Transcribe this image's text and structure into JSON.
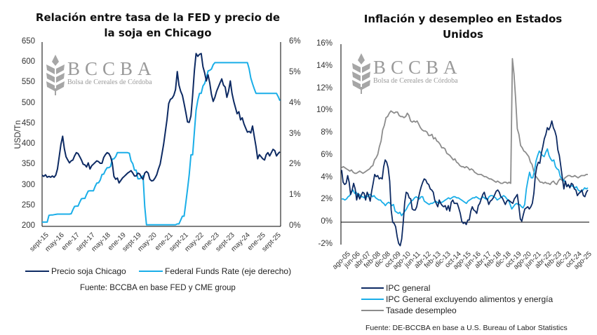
{
  "chart_data": [
    {
      "type": "line",
      "title": "Relación entre tasa de la FED y precio de la soja en Chicago",
      "title_lines": [
        "Relación entre tasa de la FED y precio de",
        "la soja en Chicago"
      ],
      "ylabel": "USD/Tn",
      "ylim": [
        200,
        650
      ],
      "y2lim": [
        0,
        6
      ],
      "yticks": [
        "650",
        "600",
        "550",
        "500",
        "450",
        "400",
        "350",
        "300",
        "250",
        "200"
      ],
      "y2ticks": [
        "6%",
        "5%",
        "4%",
        "3%",
        "2%",
        "1%",
        "0%"
      ],
      "xticks": [
        "sept-15",
        "may-16",
        "ene-17",
        "sept-17",
        "may-18",
        "ene-19",
        "sept-19",
        "may-20",
        "ene-21",
        "sept-21",
        "may-22",
        "ene-23",
        "sept-23",
        "may-24",
        "ene-25",
        "sept-25"
      ],
      "x_range": [
        "sept-15",
        "oct-25"
      ],
      "legend": "bottom",
      "series": [
        {
          "name": "Precio soja Chicago",
          "axis": "left",
          "color": "#0d2a63",
          "values": [
            325,
            322,
            326,
            320,
            322,
            320,
            323,
            320,
            325,
            340,
            370,
            400,
            420,
            390,
            370,
            362,
            355,
            360,
            362,
            372,
            380,
            378,
            370,
            362,
            352,
            350,
            345,
            355,
            340,
            348,
            352,
            356,
            360,
            358,
            354,
            354,
            368,
            375,
            380,
            378,
            370,
            355,
            322,
            315,
            318,
            306,
            312,
            318,
            322,
            326,
            330,
            333,
            336,
            330,
            323,
            323,
            330,
            328,
            320,
            315,
            330,
            334,
            330,
            315,
            311,
            312,
            318,
            326,
            340,
            352,
            375,
            400,
            430,
            460,
            500,
            510,
            513,
            520,
            534,
            578,
            545,
            530,
            520,
            500,
            478,
            455,
            454,
            470,
            520,
            580,
            622,
            615,
            620,
            622,
            590,
            575,
            555,
            570,
            550,
            522,
            505,
            515,
            530,
            540,
            550,
            560,
            545,
            540,
            515,
            530,
            555,
            525,
            505,
            490,
            475,
            480,
            460,
            465,
            450,
            440,
            430,
            432,
            428,
            445,
            420,
            395,
            365,
            375,
            370,
            365,
            362,
            375,
            380,
            372,
            380,
            388,
            385,
            372,
            378,
            382
          ]
        },
        {
          "name": "Federal Funds Rate (eje derecho)",
          "axis": "right",
          "color": "#1aaee8",
          "values": [
            0.14,
            0.14,
            0.14,
            0.14,
            0.36,
            0.37,
            0.37,
            0.38,
            0.39,
            0.4,
            0.4,
            0.4,
            0.4,
            0.4,
            0.4,
            0.4,
            0.4,
            0.41,
            0.54,
            0.65,
            0.66,
            0.66,
            0.79,
            0.9,
            0.91,
            0.91,
            1.04,
            1.15,
            1.16,
            1.16,
            1.16,
            1.3,
            1.41,
            1.42,
            1.51,
            1.69,
            1.7,
            1.82,
            1.91,
            1.91,
            1.95,
            2.19,
            2.2,
            2.27,
            2.4,
            2.4,
            2.4,
            2.4,
            2.4,
            2.4,
            2.4,
            2.38,
            2.13,
            2.04,
            1.83,
            1.83,
            1.55,
            1.55,
            1.58,
            1.65,
            0.65,
            0.05,
            0.05,
            0.05,
            0.05,
            0.05,
            0.05,
            0.05,
            0.05,
            0.05,
            0.05,
            0.05,
            0.05,
            0.05,
            0.05,
            0.05,
            0.05,
            0.05,
            0.05,
            0.08,
            0.08,
            0.2,
            0.33,
            0.33,
            0.77,
            1.21,
            1.68,
            2.33,
            2.33,
            3.08,
            3.78,
            4.1,
            4.33,
            4.33,
            4.57,
            4.65,
            4.83,
            5.06,
            5.08,
            5.12,
            5.26,
            5.33,
            5.33,
            5.33,
            5.33,
            5.33,
            5.33,
            5.33,
            5.33,
            5.33,
            5.33,
            5.33,
            5.33,
            5.33,
            5.33,
            5.33,
            5.33,
            5.33,
            5.33,
            5.33,
            5.33,
            5.13,
            4.83,
            4.64,
            4.48,
            4.33,
            4.33,
            4.33,
            4.33,
            4.33,
            4.33,
            4.33,
            4.33,
            4.33,
            4.33,
            4.33,
            4.33,
            4.33,
            4.22,
            4.09
          ]
        }
      ],
      "source": "Fuente: BCCBA en base FED y CME group"
    },
    {
      "type": "line",
      "title": "Inflación y desempleo en Estados Unidos",
      "title_lines": [
        "Inflación y desempleo en Estados",
        "Unidos"
      ],
      "ylabel": "",
      "ylim": [
        -2,
        16
      ],
      "yticks": [
        "16%",
        "14%",
        "12%",
        "10%",
        "8%",
        "6%",
        "4%",
        "2%",
        "0%",
        "-2%"
      ],
      "xticks": [
        "ago-05",
        "jun-06",
        "abr-07",
        "feb-08",
        "dic-08",
        "oct-09",
        "ago-10",
        "jun-11",
        "abr-12",
        "feb-13",
        "dic-13",
        "oct-14",
        "ago-15",
        "jun-16",
        "abr-17",
        "feb-18",
        "dic-18",
        "oct-19",
        "ago-20",
        "jun-21",
        "abr-22",
        "feb-23",
        "dic-23",
        "oct-24",
        "ago-25"
      ],
      "x_range": [
        "ago-05",
        "ago-25"
      ],
      "legend": "bottom",
      "series": [
        {
          "name": "IPC general",
          "color": "#0d2a63",
          "values": [
            4.7,
            3.6,
            3.4,
            3.5,
            4.2,
            3.6,
            2.5,
            2.9,
            3.5,
            3.0,
            2.0,
            2.6,
            2.1,
            2.4,
            2.7,
            2.6,
            2.0,
            2.7,
            2.4,
            1.9,
            2.8,
            3.5,
            4.3,
            4.1,
            4.2,
            3.9,
            4.0,
            3.9,
            5.0,
            5.6,
            5.4,
            4.9,
            3.7,
            1.1,
            0.0,
            -0.1,
            -0.4,
            -1.3,
            -1.9,
            -2.1,
            -1.5,
            0.0,
            1.8,
            2.7,
            2.6,
            2.2,
            2.1,
            1.2,
            1.1,
            1.1,
            1.4,
            2.1,
            2.7,
            3.2,
            3.6,
            3.9,
            3.8,
            3.5,
            3.4,
            3.0,
            2.9,
            2.7,
            2.0,
            1.7,
            1.4,
            2.0,
            1.7,
            1.5,
            1.4,
            1.5,
            1.1,
            1.5,
            1.0,
            1.8,
            2.0,
            1.7,
            1.7,
            1.7,
            1.3,
            0.8,
            0.1,
            -0.1,
            0.0,
            -0.2,
            0.2,
            0.2,
            1.0,
            1.4,
            1.1,
            1.0,
            0.8,
            1.5,
            1.7,
            2.1,
            2.5,
            2.7,
            2.2,
            2.1,
            1.6,
            1.9,
            2.0,
            2.2,
            2.5,
            2.8,
            2.9,
            2.7,
            2.3,
            2.2,
            1.9,
            1.6,
            1.9,
            2.0,
            1.9,
            1.8,
            1.7,
            2.1,
            2.3,
            2.5,
            1.5,
            0.3,
            0.1,
            0.7,
            1.2,
            1.3,
            1.4,
            1.2,
            1.4,
            1.7,
            2.6,
            4.2,
            5.0,
            5.4,
            5.3,
            6.2,
            6.8,
            7.5,
            7.9,
            8.5,
            8.3,
            8.6,
            9.1,
            8.5,
            8.2,
            7.7,
            6.5,
            6.0,
            5.0,
            4.0,
            3.0,
            3.7,
            3.2,
            3.4,
            3.1,
            3.5,
            3.4,
            3.0,
            2.9,
            2.4,
            2.6,
            2.7,
            2.9,
            2.4,
            2.3,
            2.7,
            2.9
          ]
        },
        {
          "name": "IPC General excluyendo alimentos y energía",
          "color": "#1aaee8",
          "values": [
            2.1,
            2.1,
            2.0,
            2.1,
            2.3,
            2.4,
            2.7,
            2.9,
            2.6,
            2.7,
            2.3,
            2.5,
            2.3,
            2.3,
            2.2,
            2.4,
            2.3,
            2.5,
            2.5,
            2.3,
            2.4,
            2.2,
            2.1,
            2.0,
            2.0,
            1.8,
            1.7,
            1.5,
            1.7,
            1.8,
            1.7,
            1.5,
            1.6,
            1.0,
            0.9,
            0.8,
            0.9,
            0.6,
            0.8,
            1.0,
            1.2,
            1.5,
            1.7,
            1.9,
            2.0,
            2.2,
            2.3,
            2.2,
            2.1,
            2.3,
            2.3,
            1.9,
            1.8,
            1.7,
            1.6,
            1.7,
            1.7,
            1.8,
            1.9,
            1.8,
            1.7,
            1.8,
            1.8,
            1.9,
            2.0,
            2.1,
            2.2,
            2.1,
            2.2,
            2.3,
            2.3,
            2.2,
            2.2,
            2.1,
            2.0,
            1.9,
            1.8,
            1.7,
            1.9,
            2.0,
            2.1,
            2.2,
            2.2,
            2.3,
            2.2,
            2.1,
            2.1,
            2.3,
            2.2,
            2.1,
            2.0,
            2.3,
            2.4,
            2.4,
            2.3,
            2.2,
            2.0,
            2.1,
            2.2,
            2.3,
            2.4,
            2.3,
            2.1,
            2.0,
            1.6,
            1.2,
            1.4,
            1.6,
            1.7,
            1.6,
            1.6,
            1.4,
            1.3,
            1.6,
            3.0,
            3.8,
            4.5,
            4.0,
            4.0,
            4.6,
            5.5,
            6.0,
            6.4,
            6.2,
            6.0,
            5.9,
            6.3,
            6.6,
            6.0,
            5.7,
            5.5,
            5.6,
            5.0,
            4.8,
            4.7,
            4.1,
            3.9,
            3.8,
            3.6,
            3.3,
            3.3,
            3.2,
            3.3,
            3.2,
            3.1,
            3.2,
            2.9,
            2.8,
            2.8,
            2.9,
            3.1,
            3.0,
            3.1
          ]
        },
        {
          "name": "Tasade desempleo",
          "color": "#8c8c8c",
          "values": [
            4.9,
            5.0,
            4.9,
            4.8,
            4.7,
            4.6,
            4.7,
            4.5,
            4.4,
            4.4,
            4.5,
            4.6,
            4.5,
            4.4,
            4.5,
            4.6,
            4.7,
            4.8,
            5.0,
            5.1,
            5.6,
            5.8,
            6.1,
            6.8,
            7.3,
            8.3,
            8.7,
            9.4,
            9.5,
            9.8,
            10.0,
            9.9,
            9.8,
            9.9,
            9.9,
            9.6,
            9.5,
            9.5,
            9.4,
            9.5,
            9.8,
            9.6,
            9.1,
            9.0,
            9.1,
            9.0,
            9.1,
            8.8,
            8.5,
            8.3,
            8.2,
            8.2,
            8.1,
            7.8,
            7.8,
            7.9,
            7.5,
            7.6,
            7.3,
            7.2,
            7.0,
            6.7,
            6.7,
            6.6,
            6.2,
            6.1,
            6.0,
            5.8,
            5.6,
            5.7,
            5.4,
            5.3,
            5.1,
            5.0,
            5.0,
            4.9,
            5.0,
            4.9,
            4.7,
            4.8,
            4.7,
            4.5,
            4.4,
            4.3,
            4.3,
            4.3,
            4.2,
            4.1,
            4.1,
            4.0,
            3.9,
            3.9,
            3.8,
            3.7,
            3.6,
            3.7,
            3.6,
            3.5,
            3.5,
            3.6,
            3.6,
            3.5,
            3.6,
            3.5,
            14.7,
            13.3,
            11.1,
            8.4,
            7.9,
            6.9,
            6.7,
            6.4,
            6.3,
            6.1,
            5.9,
            5.4,
            5.2,
            4.6,
            4.2,
            4.0,
            3.8,
            3.6,
            3.6,
            3.5,
            3.6,
            3.5,
            3.5,
            3.4,
            3.6,
            3.7,
            3.5,
            3.4,
            3.7,
            3.9,
            3.8,
            3.7,
            4.0,
            4.1,
            4.2,
            4.2,
            4.1,
            4.1,
            4.2,
            4.1,
            4.0,
            4.1,
            4.2,
            4.2,
            4.2,
            4.3,
            4.3
          ]
        }
      ],
      "source": "Fuente: DE-BCCBA en base a U.S. Bureau of Labor Statistics"
    }
  ],
  "watermark": {
    "big": "BCCBA",
    "small": "Bolsa de Cereales de Córdoba",
    "icon": "wheat-icon"
  }
}
